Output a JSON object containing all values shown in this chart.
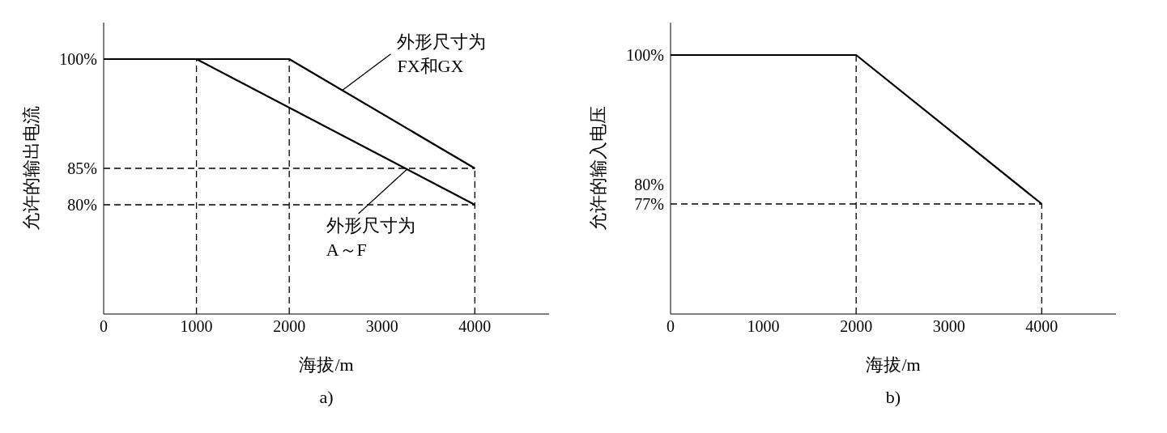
{
  "chart_data": [
    {
      "type": "line",
      "xlabel": "海拔/m",
      "ylabel": "允许的输出电流",
      "xlim": [
        0,
        4800
      ],
      "xticks": [
        0,
        1000,
        2000,
        3000,
        4000
      ],
      "ylim": [
        65,
        105
      ],
      "yticks": [
        {
          "value": 80,
          "label": "80%"
        },
        {
          "value": 85,
          "label": "85%"
        },
        {
          "value": 100,
          "label": "100%"
        }
      ],
      "marker": "none",
      "line_style": "solid",
      "series": [
        {
          "color": "#000000",
          "x": [
            0,
            1000,
            4000
          ],
          "values": [
            100,
            100,
            80
          ]
        },
        {
          "color": "#000000",
          "x": [
            0,
            2000,
            4000
          ],
          "values": [
            100,
            100,
            85
          ]
        }
      ],
      "ref_lines": [
        {
          "axis": "x",
          "value": 1000,
          "line_style": "dashed",
          "color": "#000000"
        },
        {
          "axis": "x",
          "value": 2000,
          "line_style": "dashed",
          "color": "#000000"
        },
        {
          "axis": "x",
          "value": 4000,
          "line_style": "dashed",
          "color": "#000000"
        },
        {
          "axis": "y",
          "value": 85,
          "line_style": "dashed",
          "color": "#000000"
        },
        {
          "axis": "y",
          "value": 80,
          "line_style": "dashed",
          "color": "#000000"
        }
      ],
      "annotations": [
        {
          "text": "外形尺寸为\nFX和GX",
          "x": 2570,
          "y": 95.7
        },
        {
          "text": "外形尺寸为\nA～F",
          "x": 3270,
          "y": 84.9
        },
        "a)"
      ]
    },
    {
      "type": "line",
      "xlabel": "海拔/m",
      "ylabel": "允许的输入电压",
      "xlim": [
        0,
        4800
      ],
      "xticks": [
        0,
        1000,
        2000,
        3000,
        4000
      ],
      "ylim": [
        60,
        105
      ],
      "yticks": [
        {
          "value": 77,
          "label": "77%"
        },
        {
          "value": 80,
          "label": "80%"
        },
        {
          "value": 100,
          "label": "100%"
        }
      ],
      "marker": "none",
      "line_style": "solid",
      "series": [
        {
          "color": "#000000",
          "x": [
            0,
            2000,
            4000
          ],
          "values": [
            100,
            100,
            77
          ]
        }
      ],
      "ref_lines": [
        {
          "axis": "x",
          "value": 2000,
          "line_style": "dashed",
          "color": "#000000"
        },
        {
          "axis": "x",
          "value": 4000,
          "line_style": "dashed",
          "color": "#000000"
        },
        {
          "axis": "y",
          "value": 77,
          "line_style": "dashed",
          "color": "#000000"
        }
      ],
      "annotations": [
        "b)"
      ]
    }
  ]
}
